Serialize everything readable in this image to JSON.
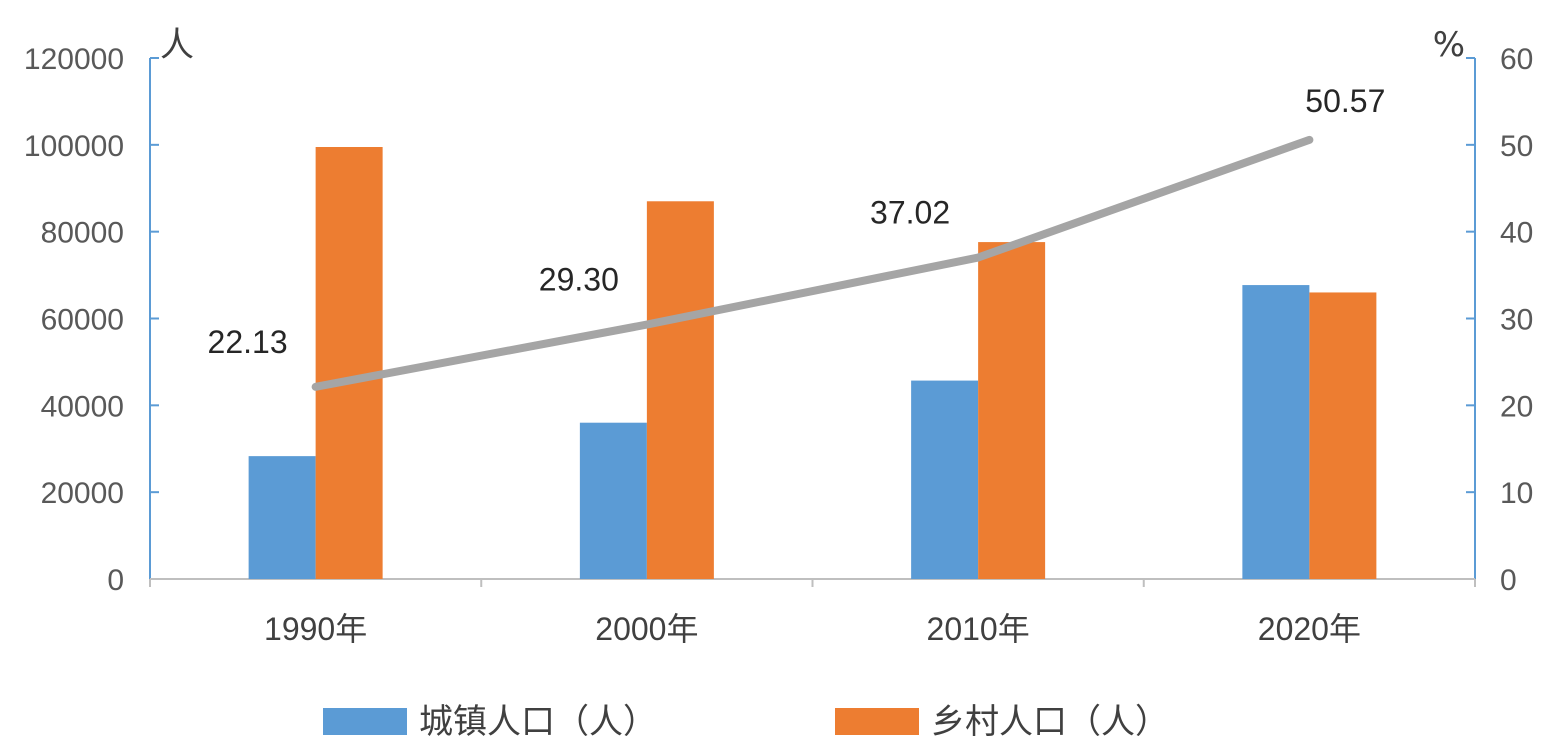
{
  "chart_data": {
    "type": "bar",
    "categories": [
      "1990年",
      "2000年",
      "2010年",
      "2020年"
    ],
    "series": [
      {
        "name": "城镇人口（人）",
        "type": "bar",
        "axis": "left",
        "color": "#5B9BD5",
        "values": [
          28300,
          36000,
          45700,
          67700
        ]
      },
      {
        "name": "乡村人口（人）",
        "type": "bar",
        "axis": "left",
        "color": "#ED7D31",
        "values": [
          99500,
          87000,
          77600,
          66000
        ]
      },
      {
        "type": "line",
        "axis": "right",
        "color": "#A5A5A5",
        "values": [
          22.13,
          29.3,
          37.02,
          50.57
        ],
        "data_labels": [
          "22.13",
          "29.30",
          "37.02",
          "50.57"
        ]
      }
    ],
    "y_left": {
      "unit": "人",
      "ylim": [
        0,
        120000
      ],
      "ticks": [
        "0",
        "20000",
        "40000",
        "60000",
        "80000",
        "100000",
        "120000"
      ]
    },
    "y_right": {
      "unit": "%",
      "ylim": [
        0,
        60
      ],
      "ticks": [
        "0",
        "10",
        "20",
        "30",
        "40",
        "50",
        "60"
      ]
    },
    "axis_color": "#5B9BD5",
    "grid": false,
    "legend_position": "bottom"
  }
}
